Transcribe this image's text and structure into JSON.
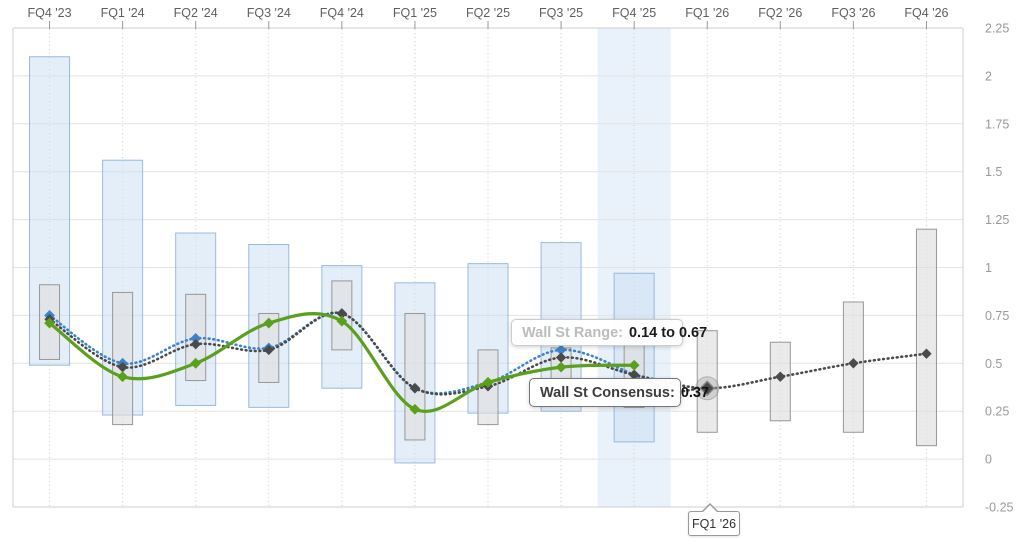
{
  "top_axis": {
    "labels": [
      "FQ4 '23",
      "FQ1 '24",
      "FQ2 '24",
      "FQ3 '24",
      "FQ4 '24",
      "FQ1 '25",
      "FQ2 '25",
      "FQ3 '25",
      "FQ4 '25",
      "FQ1 '26",
      "FQ2 '26",
      "FQ3 '26",
      "FQ4 '26"
    ]
  },
  "right_axis": {
    "labels": [
      "2.25",
      "2",
      "1.75",
      "1.5",
      "1.25",
      "1",
      "0.75",
      "0.5",
      "0.25",
      "0",
      "-0.25"
    ]
  },
  "tooltips": {
    "range_label": "Wall St Range:",
    "range_value": "0.14 to 0.67",
    "consensus_label": "Wall St Consensus:",
    "consensus_value": "0.37",
    "hover_quarter": "FQ1 '26"
  },
  "chart_data": {
    "type": "line",
    "title": "",
    "categories": [
      "FQ4 '23",
      "FQ1 '24",
      "FQ2 '24",
      "FQ3 '24",
      "FQ4 '24",
      "FQ1 '25",
      "FQ2 '25",
      "FQ3 '25",
      "FQ4 '25",
      "FQ1 '26",
      "FQ2 '26",
      "FQ3 '26",
      "FQ4 '26"
    ],
    "y_axis": {
      "min": -0.25,
      "max": 2.25,
      "step": 0.25
    },
    "grid": true,
    "legend": "none",
    "highlighted_category": "FQ4 '25",
    "hovered_category": "FQ1 '26",
    "hovered_value": 0.37,
    "colors": {
      "highlight_band": "#e9f1fa",
      "gridline": "#e3e3e3",
      "frame": "#cfcfcf",
      "top_label": "#5f5f5f",
      "right_label": "#9a9a9a",
      "estimize_bar_fill": "rgba(201,222,243,0.50)",
      "estimize_bar_border": "rgba(138,175,214,0.85)",
      "wallst_bar_fill": "rgba(222,222,222,0.65)",
      "wallst_bar_border": "#979797",
      "estimize_line": "#3c83c9",
      "wallst_line": "#4a4a4a",
      "actual_line": "#5ba01d",
      "halo": "rgba(170,170,170,0.40)"
    },
    "series": [
      {
        "name": "estimize-range",
        "type": "range-bar",
        "values": [
          [
            0.49,
            2.1
          ],
          [
            0.23,
            1.56
          ],
          [
            0.28,
            1.18
          ],
          [
            0.27,
            1.12
          ],
          [
            0.37,
            1.01
          ],
          [
            -0.02,
            0.92
          ],
          [
            0.24,
            1.02
          ],
          [
            0.25,
            1.13
          ],
          [
            0.09,
            0.97
          ],
          null,
          null,
          null,
          null
        ]
      },
      {
        "name": "wallst-range",
        "type": "range-bar",
        "values": [
          [
            0.52,
            0.91
          ],
          [
            0.18,
            0.87
          ],
          [
            0.41,
            0.86
          ],
          [
            0.4,
            0.76
          ],
          [
            0.57,
            0.93
          ],
          [
            0.1,
            0.76
          ],
          [
            0.18,
            0.57
          ],
          [
            0.28,
            0.58
          ],
          [
            0.27,
            0.68
          ],
          [
            0.14,
            0.67
          ],
          [
            0.2,
            0.61
          ],
          [
            0.14,
            0.82
          ],
          [
            0.07,
            1.2
          ]
        ]
      },
      {
        "name": "estimize-consensus",
        "type": "dotted-line",
        "values": [
          0.75,
          0.5,
          0.63,
          0.58,
          0.76,
          0.37,
          0.4,
          0.57,
          0.44,
          null,
          null,
          null,
          null
        ]
      },
      {
        "name": "wallst-consensus",
        "type": "dotted-line",
        "values": [
          0.73,
          0.48,
          0.6,
          0.57,
          0.76,
          0.37,
          0.38,
          0.53,
          0.44,
          0.37,
          0.43,
          0.5,
          0.55
        ]
      },
      {
        "name": "actual",
        "type": "solid-line",
        "values": [
          0.71,
          0.43,
          0.5,
          0.71,
          0.72,
          0.26,
          0.4,
          0.48,
          0.49,
          null,
          null,
          null,
          null
        ]
      }
    ]
  }
}
